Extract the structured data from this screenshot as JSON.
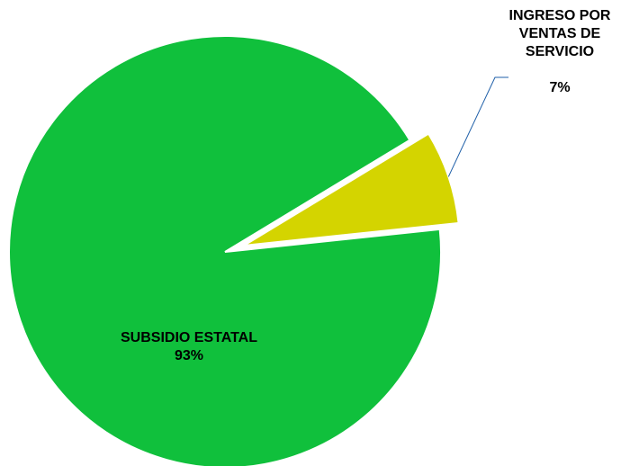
{
  "chart_data": {
    "type": "pie",
    "categories": [
      "INGRESO POR VENTAS DE SERVICIO",
      "SUBSIDIO ESTATAL"
    ],
    "values": [
      7,
      93
    ],
    "value_labels": [
      "7%",
      "93%"
    ],
    "colors": [
      "#d4d400",
      "#10c03c"
    ],
    "explode": [
      true,
      false
    ]
  }
}
